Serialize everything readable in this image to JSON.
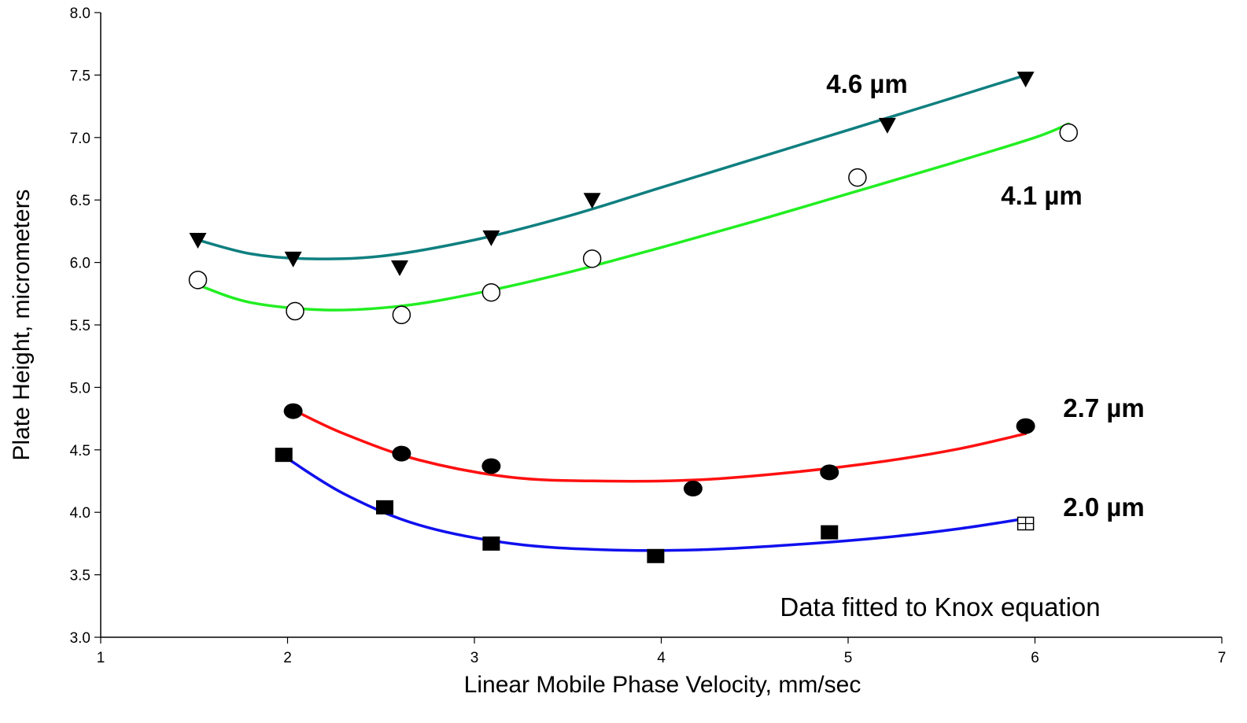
{
  "chart_data": {
    "type": "scatter",
    "xlabel": "Linear Mobile Phase Velocity, mm/sec",
    "ylabel": "Plate Height, micrometers",
    "xlim": [
      1,
      7
    ],
    "ylim": [
      3.0,
      8.0
    ],
    "xticks": [
      "1",
      "2",
      "3",
      "4",
      "5",
      "6",
      "7"
    ],
    "yticks": [
      "3.0",
      "3.5",
      "4.0",
      "4.5",
      "5.0",
      "5.5",
      "6.0",
      "6.5",
      "7.0",
      "7.5",
      "8.0"
    ],
    "grid": false,
    "annotation": "Data fitted to Knox equation",
    "series": [
      {
        "name": "4.6 µm",
        "color": "#0f7f80",
        "marker": "triangle-down",
        "points": [
          [
            1.52,
            6.18
          ],
          [
            2.03,
            6.03
          ],
          [
            2.6,
            5.96
          ],
          [
            3.09,
            6.2
          ],
          [
            3.63,
            6.5
          ],
          [
            5.21,
            7.1
          ],
          [
            5.95,
            7.47
          ]
        ],
        "fit": [
          [
            1.52,
            6.18
          ],
          [
            1.8,
            6.07
          ],
          [
            2.1,
            6.03
          ],
          [
            2.5,
            6.05
          ],
          [
            3.0,
            6.18
          ],
          [
            3.5,
            6.37
          ],
          [
            4.0,
            6.6
          ],
          [
            4.5,
            6.83
          ],
          [
            5.0,
            7.06
          ],
          [
            5.5,
            7.29
          ],
          [
            5.95,
            7.5
          ]
        ]
      },
      {
        "name": "4.1 µm",
        "color": "#22ee22",
        "marker": "circle-open",
        "points": [
          [
            1.52,
            5.86
          ],
          [
            2.04,
            5.61
          ],
          [
            2.61,
            5.58
          ],
          [
            3.09,
            5.76
          ],
          [
            3.63,
            6.03
          ],
          [
            5.05,
            6.68
          ],
          [
            6.18,
            7.04
          ]
        ],
        "fit": [
          [
            1.52,
            5.82
          ],
          [
            1.8,
            5.68
          ],
          [
            2.2,
            5.62
          ],
          [
            2.6,
            5.65
          ],
          [
            3.0,
            5.75
          ],
          [
            3.5,
            5.92
          ],
          [
            4.0,
            6.12
          ],
          [
            4.5,
            6.33
          ],
          [
            5.0,
            6.55
          ],
          [
            5.5,
            6.77
          ],
          [
            6.0,
            7.0
          ],
          [
            6.18,
            7.11
          ]
        ]
      },
      {
        "name": "2.7 µm",
        "color": "#ff1010",
        "marker": "circle-filled",
        "points": [
          [
            2.03,
            4.81
          ],
          [
            2.61,
            4.47
          ],
          [
            3.09,
            4.37
          ],
          [
            4.17,
            4.19
          ],
          [
            4.9,
            4.32
          ],
          [
            5.95,
            4.69
          ]
        ],
        "fit": [
          [
            2.03,
            4.82
          ],
          [
            2.3,
            4.63
          ],
          [
            2.7,
            4.42
          ],
          [
            3.2,
            4.28
          ],
          [
            3.7,
            4.25
          ],
          [
            4.2,
            4.26
          ],
          [
            4.7,
            4.32
          ],
          [
            5.2,
            4.41
          ],
          [
            5.6,
            4.51
          ],
          [
            5.95,
            4.63
          ]
        ]
      },
      {
        "name": "2.0 µm",
        "color": "#1010ee",
        "marker": "square-filled",
        "points": [
          [
            1.98,
            4.46
          ],
          [
            2.52,
            4.04
          ],
          [
            3.09,
            3.75
          ],
          [
            3.97,
            3.65
          ],
          [
            4.9,
            3.84
          ],
          [
            5.95,
            3.91
          ]
        ],
        "fit": [
          [
            1.98,
            4.45
          ],
          [
            2.3,
            4.15
          ],
          [
            2.7,
            3.9
          ],
          [
            3.2,
            3.75
          ],
          [
            3.7,
            3.7
          ],
          [
            4.2,
            3.7
          ],
          [
            4.7,
            3.74
          ],
          [
            5.2,
            3.8
          ],
          [
            5.6,
            3.87
          ],
          [
            5.95,
            3.95
          ]
        ]
      }
    ]
  }
}
